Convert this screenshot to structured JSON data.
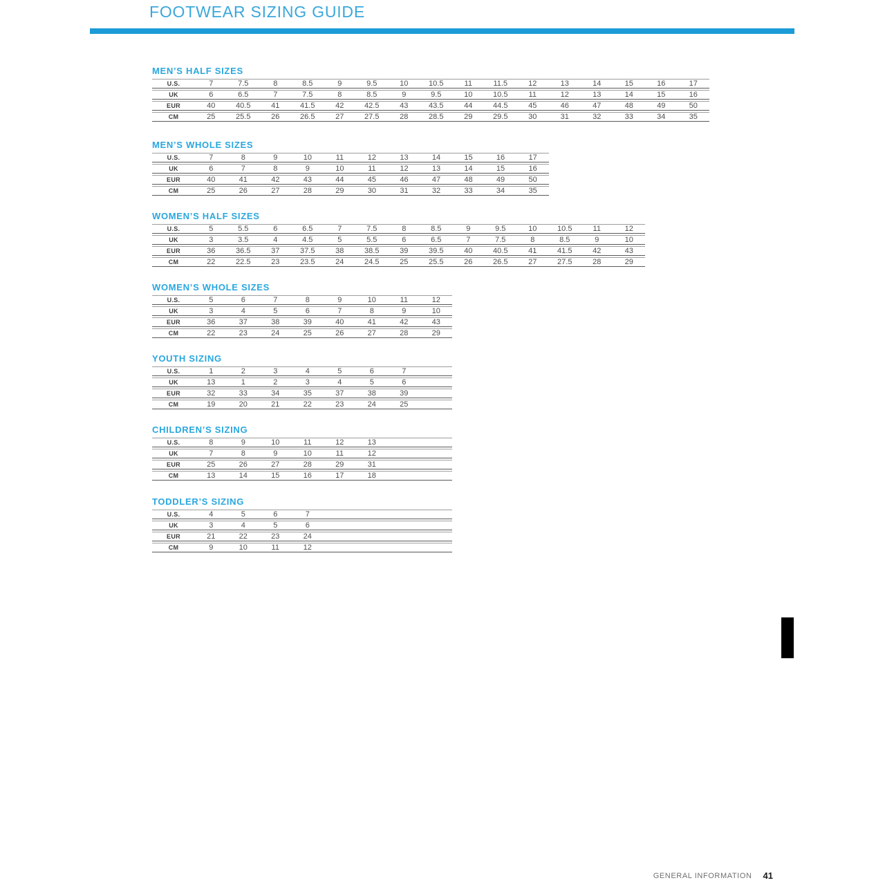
{
  "title": "FOOTWEAR SIZING GUIDE",
  "colors": {
    "accent_heading": "#29a7df",
    "title_bar": "#1b9bd7",
    "table_text": "#4e4e4e",
    "edge_marker": "#000000"
  },
  "tables": [
    {
      "title": "MEN’S HALF SIZES",
      "rows": [
        {
          "label": "U.S.",
          "values": [
            "7",
            "7.5",
            "8",
            "8.5",
            "9",
            "9.5",
            "10",
            "10.5",
            "11",
            "11.5",
            "12",
            "13",
            "14",
            "15",
            "16",
            "17"
          ]
        },
        {
          "label": "UK",
          "values": [
            "6",
            "6.5",
            "7",
            "7.5",
            "8",
            "8.5",
            "9",
            "9.5",
            "10",
            "10.5",
            "11",
            "12",
            "13",
            "14",
            "15",
            "16"
          ]
        },
        {
          "label": "EUR",
          "values": [
            "40",
            "40.5",
            "41",
            "41.5",
            "42",
            "42.5",
            "43",
            "43.5",
            "44",
            "44.5",
            "45",
            "46",
            "47",
            "48",
            "49",
            "50"
          ]
        },
        {
          "label": "CM",
          "values": [
            "25",
            "25.5",
            "26",
            "26.5",
            "27",
            "27.5",
            "28",
            "28.5",
            "29",
            "29.5",
            "30",
            "31",
            "32",
            "33",
            "34",
            "35"
          ]
        }
      ]
    },
    {
      "title": "MEN’S WHOLE SIZES",
      "rows": [
        {
          "label": "U.S.",
          "values": [
            "7",
            "8",
            "9",
            "10",
            "11",
            "12",
            "13",
            "14",
            "15",
            "16",
            "17"
          ]
        },
        {
          "label": "UK",
          "values": [
            "6",
            "7",
            "8",
            "9",
            "10",
            "11",
            "12",
            "13",
            "14",
            "15",
            "16"
          ]
        },
        {
          "label": "EUR",
          "values": [
            "40",
            "41",
            "42",
            "43",
            "44",
            "45",
            "46",
            "47",
            "48",
            "49",
            "50"
          ]
        },
        {
          "label": "CM",
          "values": [
            "25",
            "26",
            "27",
            "28",
            "29",
            "30",
            "31",
            "32",
            "33",
            "34",
            "35"
          ]
        }
      ]
    },
    {
      "title": "WOMEN’S HALF SIZES",
      "rows": [
        {
          "label": "U.S.",
          "values": [
            "5",
            "5.5",
            "6",
            "6.5",
            "7",
            "7.5",
            "8",
            "8.5",
            "9",
            "9.5",
            "10",
            "10.5",
            "11",
            "12"
          ]
        },
        {
          "label": "UK",
          "values": [
            "3",
            "3.5",
            "4",
            "4.5",
            "5",
            "5.5",
            "6",
            "6.5",
            "7",
            "7.5",
            "8",
            "8.5",
            "9",
            "10"
          ]
        },
        {
          "label": "EUR",
          "values": [
            "36",
            "36.5",
            "37",
            "37.5",
            "38",
            "38.5",
            "39",
            "39.5",
            "40",
            "40.5",
            "41",
            "41.5",
            "42",
            "43"
          ]
        },
        {
          "label": "CM",
          "values": [
            "22",
            "22.5",
            "23",
            "23.5",
            "24",
            "24.5",
            "25",
            "25.5",
            "26",
            "26.5",
            "27",
            "27.5",
            "28",
            "29"
          ]
        }
      ]
    },
    {
      "title": "WOMEN’S WHOLE SIZES",
      "rows": [
        {
          "label": "U.S.",
          "values": [
            "5",
            "6",
            "7",
            "8",
            "9",
            "10",
            "11",
            "12"
          ]
        },
        {
          "label": "UK",
          "values": [
            "3",
            "4",
            "5",
            "6",
            "7",
            "8",
            "9",
            "10"
          ]
        },
        {
          "label": "EUR",
          "values": [
            "36",
            "37",
            "38",
            "39",
            "40",
            "41",
            "42",
            "43"
          ]
        },
        {
          "label": "CM",
          "values": [
            "22",
            "23",
            "24",
            "25",
            "26",
            "27",
            "28",
            "29"
          ]
        }
      ]
    },
    {
      "title": "YOUTH SIZING",
      "rows": [
        {
          "label": "U.S.",
          "values": [
            "1",
            "2",
            "3",
            "4",
            "5",
            "6",
            "7"
          ]
        },
        {
          "label": "UK",
          "values": [
            "13",
            "1",
            "2",
            "3",
            "4",
            "5",
            "6"
          ]
        },
        {
          "label": "EUR",
          "values": [
            "32",
            "33",
            "34",
            "35",
            "37",
            "38",
            "39"
          ]
        },
        {
          "label": "CM",
          "values": [
            "19",
            "20",
            "21",
            "22",
            "23",
            "24",
            "25"
          ]
        }
      ]
    },
    {
      "title": "CHILDREN’S SIZING",
      "rows": [
        {
          "label": "U.S.",
          "values": [
            "8",
            "9",
            "10",
            "11",
            "12",
            "13"
          ]
        },
        {
          "label": "UK",
          "values": [
            "7",
            "8",
            "9",
            "10",
            "11",
            "12"
          ]
        },
        {
          "label": "EUR",
          "values": [
            "25",
            "26",
            "27",
            "28",
            "29",
            "31"
          ]
        },
        {
          "label": "CM",
          "values": [
            "13",
            "14",
            "15",
            "16",
            "17",
            "18"
          ]
        }
      ]
    },
    {
      "title": "TODDLER’S SIZING",
      "rows": [
        {
          "label": "U.S.",
          "values": [
            "4",
            "5",
            "6",
            "7"
          ]
        },
        {
          "label": "UK",
          "values": [
            "3",
            "4",
            "5",
            "6"
          ]
        },
        {
          "label": "EUR",
          "values": [
            "21",
            "22",
            "23",
            "24"
          ]
        },
        {
          "label": "CM",
          "values": [
            "9",
            "10",
            "11",
            "12"
          ]
        }
      ]
    }
  ],
  "footer": {
    "label": "GENERAL INFORMATION",
    "page_number": "41"
  }
}
